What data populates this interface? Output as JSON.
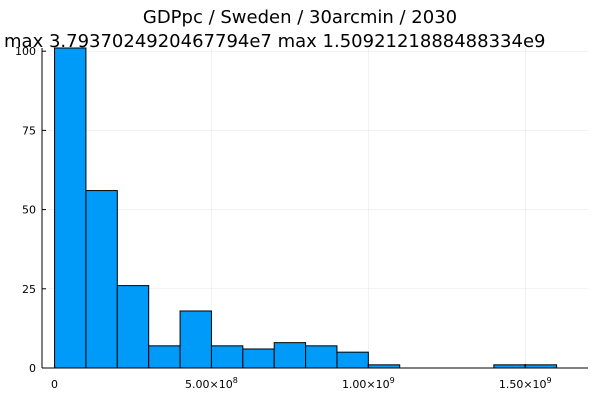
{
  "chart_data": {
    "type": "bar",
    "title": "GDPpc / Sweden / 30arcmin / 2030",
    "subtitle": "max 3.7937024920467794e7  max 1.5092121888488334e9",
    "xlim": [
      -40000000,
      1700000000
    ],
    "ylim": [
      0,
      101
    ],
    "x_ticks": [
      {
        "value": 0,
        "mantissa": "0",
        "exp": ""
      },
      {
        "value": 500000000,
        "mantissa": "5.00×10",
        "exp": "8"
      },
      {
        "value": 1000000000,
        "mantissa": "1.00×10",
        "exp": "9"
      },
      {
        "value": 1500000000,
        "mantissa": "1.50×10",
        "exp": "9"
      }
    ],
    "y_ticks": [
      0,
      25,
      50,
      75,
      100
    ],
    "bin_width": 100000000,
    "bins": [
      {
        "start": 0,
        "count": 101
      },
      {
        "start": 100000000,
        "count": 56
      },
      {
        "start": 200000000,
        "count": 26
      },
      {
        "start": 300000000,
        "count": 7
      },
      {
        "start": 400000000,
        "count": 18
      },
      {
        "start": 500000000,
        "count": 7
      },
      {
        "start": 600000000,
        "count": 6
      },
      {
        "start": 700000000,
        "count": 8
      },
      {
        "start": 800000000,
        "count": 7
      },
      {
        "start": 900000000,
        "count": 5
      },
      {
        "start": 1000000000,
        "count": 1
      },
      {
        "start": 1100000000,
        "count": 0
      },
      {
        "start": 1200000000,
        "count": 0
      },
      {
        "start": 1300000000,
        "count": 0
      },
      {
        "start": 1400000000,
        "count": 1
      },
      {
        "start": 1500000000,
        "count": 1
      }
    ],
    "bar_color": "#009AF9",
    "grid": true,
    "legend": "none"
  }
}
